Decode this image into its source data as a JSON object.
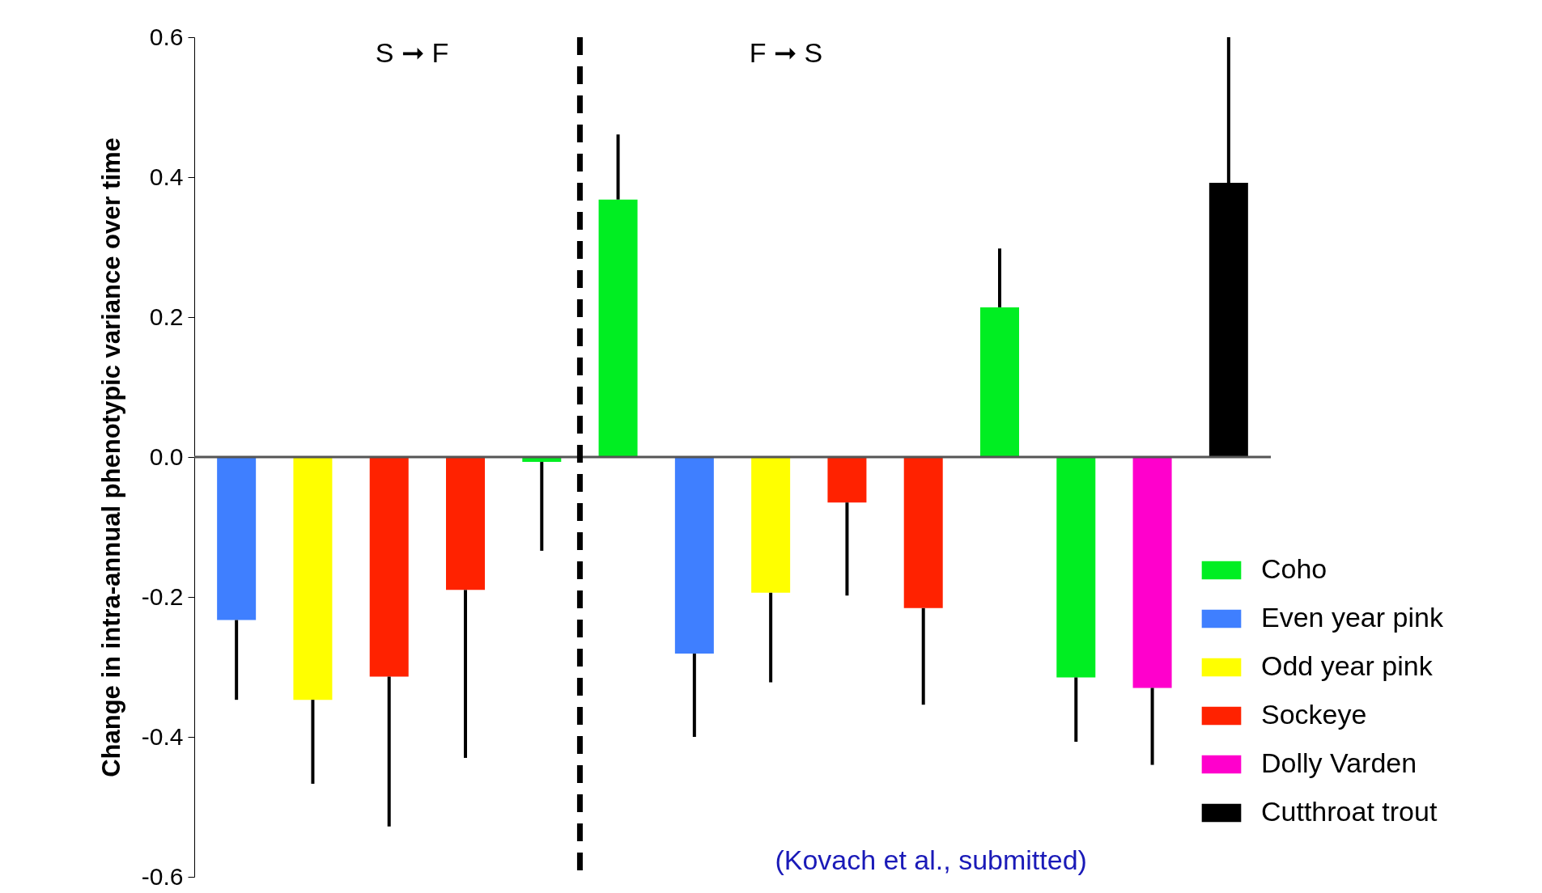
{
  "chart_data": {
    "type": "bar",
    "ylabel": "Change in intra-annual phenotypic variance over time",
    "categories": [
      null,
      null,
      null,
      null,
      null,
      null,
      null,
      null,
      null,
      null,
      null,
      null,
      null,
      null
    ],
    "series": [
      {
        "name": "Coho",
        "color": "#00ee22",
        "values": [
          null,
          null,
          null,
          null,
          -0.007,
          0.368,
          null,
          null,
          null,
          null,
          0.214,
          -0.315,
          null,
          null
        ],
        "errors": [
          null,
          null,
          null,
          null,
          [
            -0.134,
            -0.007
          ],
          [
            0.368,
            0.461
          ],
          null,
          null,
          null,
          null,
          [
            0.214,
            0.298
          ],
          [
            -0.407,
            -0.315
          ],
          null,
          null
        ]
      },
      {
        "name": "Even year pink",
        "color": "#3f7fff",
        "values": [
          -0.233,
          null,
          null,
          null,
          null,
          null,
          -0.281,
          null,
          null,
          null,
          null,
          null,
          null,
          null
        ],
        "errors": [
          [
            -0.347,
            -0.233
          ],
          null,
          null,
          null,
          null,
          null,
          [
            -0.4,
            -0.281
          ],
          null,
          null,
          null,
          null,
          null,
          null,
          null
        ]
      },
      {
        "name": "Odd year pink",
        "color": "#ffff00",
        "values": [
          null,
          -0.347,
          null,
          null,
          null,
          null,
          null,
          -0.194,
          null,
          null,
          null,
          null,
          null,
          null
        ],
        "errors": [
          null,
          [
            -0.467,
            -0.347
          ],
          null,
          null,
          null,
          null,
          null,
          [
            -0.322,
            -0.194
          ],
          null,
          null,
          null,
          null,
          null,
          null
        ]
      },
      {
        "name": "Sockeye",
        "color": "#ff2200",
        "values": [
          null,
          null,
          -0.314,
          -0.19,
          null,
          null,
          null,
          null,
          -0.065,
          -0.216,
          null,
          null,
          null,
          null
        ],
        "errors": [
          null,
          null,
          [
            -0.528,
            -0.314
          ],
          [
            -0.43,
            -0.19
          ],
          null,
          null,
          null,
          null,
          [
            -0.198,
            -0.065
          ],
          [
            -0.354,
            -0.216
          ],
          null,
          null,
          null,
          null
        ]
      },
      {
        "name": "Dolly Varden",
        "color": "#ff00cc",
        "values": [
          null,
          null,
          null,
          null,
          null,
          null,
          null,
          null,
          null,
          null,
          null,
          null,
          -0.33,
          null
        ],
        "errors": [
          null,
          null,
          null,
          null,
          null,
          null,
          null,
          null,
          null,
          null,
          null,
          null,
          [
            -0.44,
            -0.33
          ],
          null
        ]
      },
      {
        "name": "Cutthroat trout",
        "color": "#000000",
        "values": [
          null,
          null,
          null,
          null,
          null,
          null,
          null,
          null,
          null,
          null,
          null,
          null,
          null,
          0.392
        ],
        "errors": [
          null,
          null,
          null,
          null,
          null,
          null,
          null,
          null,
          null,
          null,
          null,
          null,
          null,
          [
            0.392,
            0.6
          ]
        ]
      }
    ],
    "ylim": [
      -0.6,
      0.6
    ],
    "yticks": [
      {
        "value": -0.6,
        "label": "-0.6"
      },
      {
        "value": -0.4,
        "label": "-0.4"
      },
      {
        "value": -0.2,
        "label": "-0.2"
      },
      {
        "value": 0,
        "label": "0.0"
      },
      {
        "value": 0.2,
        "label": "0.2"
      },
      {
        "value": 0.4,
        "label": "0.4"
      },
      {
        "value": 0.6,
        "label": "0.6"
      }
    ],
    "ref_lines": [
      {
        "axis": "y",
        "value": 0,
        "color": "#555555",
        "line_style": "solid"
      }
    ],
    "annotations": [
      "S ➞ F",
      "F ➞ S",
      "(Kovach et al., submitted)"
    ],
    "legend": "bottom right",
    "grid": false
  }
}
